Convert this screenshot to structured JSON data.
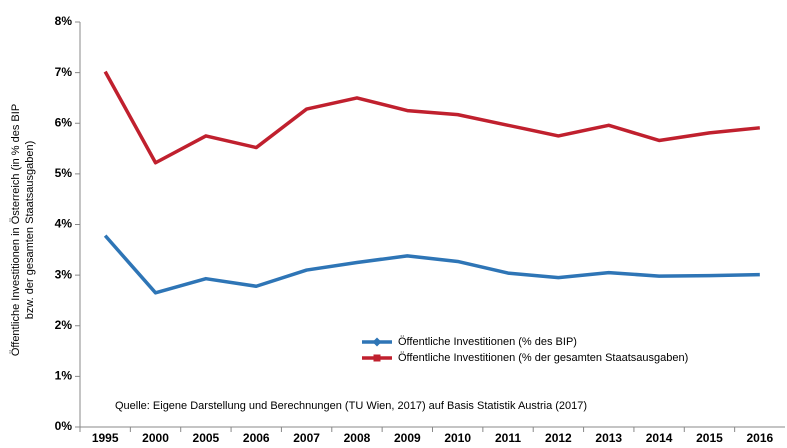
{
  "chart_data": {
    "type": "line",
    "ylabel": [
      "Öffentliche Investitionen in Österreich (in % des BIP",
      "bzw. der gesamten Staatsausgaben)"
    ],
    "annotation": "Quelle: Eigene Darstellung und Berechnungen (TU Wien, 2017) auf Basis Statistik Austria (2017)",
    "categories": [
      "1995",
      "2000",
      "2005",
      "2006",
      "2007",
      "2008",
      "2009",
      "2010",
      "2011",
      "2012",
      "2013",
      "2014",
      "2015",
      "2016"
    ],
    "series": [
      {
        "name": "Öffentliche Investitionen (% des BIP)",
        "color": "#2e75b6",
        "marker": "diamond",
        "values": [
          3.78,
          2.65,
          2.93,
          2.78,
          3.1,
          3.25,
          3.38,
          3.27,
          3.04,
          2.95,
          3.05,
          2.98,
          2.99,
          3.01
        ]
      },
      {
        "name": "Öffentliche Investitionen (% der gesamten Staatsausgaben)",
        "color": "#c0202e",
        "marker": "square",
        "values": [
          7.02,
          5.22,
          5.75,
          5.52,
          6.28,
          6.5,
          6.25,
          6.17,
          5.96,
          5.75,
          5.96,
          5.66,
          5.81,
          5.91
        ]
      }
    ],
    "ylim": [
      0,
      8
    ],
    "yticks": [
      {
        "value": 0,
        "label": "0%"
      },
      {
        "value": 1,
        "label": "1%"
      },
      {
        "value": 2,
        "label": "2%"
      },
      {
        "value": 3,
        "label": "3%"
      },
      {
        "value": 4,
        "label": "4%"
      },
      {
        "value": 5,
        "label": "5%"
      },
      {
        "value": 6,
        "label": "6%"
      },
      {
        "value": 7,
        "label": "7%"
      },
      {
        "value": 8,
        "label": "8%"
      }
    ],
    "grid": false
  }
}
